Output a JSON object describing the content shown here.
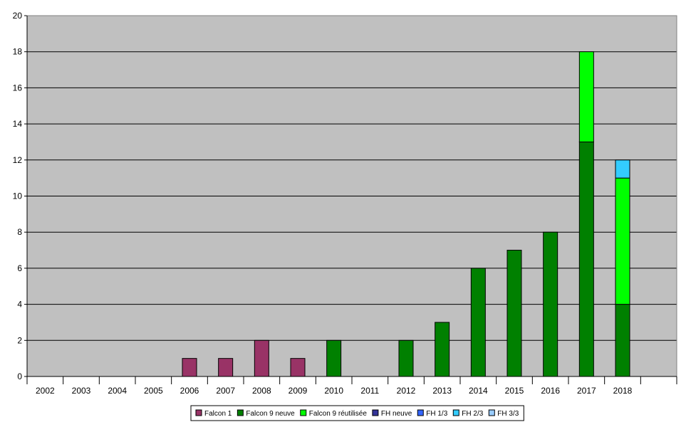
{
  "chart_data": {
    "type": "bar",
    "stacked": true,
    "title": "",
    "xlabel": "",
    "ylabel": "",
    "ylim": [
      0,
      20
    ],
    "yticks": [
      0,
      2,
      4,
      6,
      8,
      10,
      12,
      14,
      16,
      18,
      20
    ],
    "grid": true,
    "legend_position": "bottom",
    "categories": [
      "2002",
      "2003",
      "2004",
      "2005",
      "2006",
      "2007",
      "2008",
      "2009",
      "2010",
      "2011",
      "2012",
      "2013",
      "2014",
      "2015",
      "2016",
      "2017",
      "2018"
    ],
    "series": [
      {
        "name": "Falcon 1",
        "color": "#993366",
        "values": [
          0,
          0,
          0,
          0,
          1,
          1,
          2,
          1,
          0,
          0,
          0,
          0,
          0,
          0,
          0,
          0,
          0
        ]
      },
      {
        "name": "Falcon 9 neuve",
        "color": "#008000",
        "values": [
          0,
          0,
          0,
          0,
          0,
          0,
          0,
          0,
          2,
          0,
          2,
          3,
          6,
          7,
          8,
          13,
          4
        ]
      },
      {
        "name": "Falcon 9 réutilisée",
        "color": "#00ff00",
        "values": [
          0,
          0,
          0,
          0,
          0,
          0,
          0,
          0,
          0,
          0,
          0,
          0,
          0,
          0,
          0,
          5,
          7
        ]
      },
      {
        "name": "FH neuve",
        "color": "#333399",
        "values": [
          0,
          0,
          0,
          0,
          0,
          0,
          0,
          0,
          0,
          0,
          0,
          0,
          0,
          0,
          0,
          0,
          0
        ]
      },
      {
        "name": "FH 1/3",
        "color": "#3366ff",
        "values": [
          0,
          0,
          0,
          0,
          0,
          0,
          0,
          0,
          0,
          0,
          0,
          0,
          0,
          0,
          0,
          0,
          0
        ]
      },
      {
        "name": "FH 2/3",
        "color": "#33ccff",
        "values": [
          0,
          0,
          0,
          0,
          0,
          0,
          0,
          0,
          0,
          0,
          0,
          0,
          0,
          0,
          0,
          0,
          1
        ]
      },
      {
        "name": "FH 3/3",
        "color": "#99ccff",
        "values": [
          0,
          0,
          0,
          0,
          0,
          0,
          0,
          0,
          0,
          0,
          0,
          0,
          0,
          0,
          0,
          0,
          0
        ]
      }
    ],
    "colors": {
      "plot_background": "#c0c0c0",
      "gridline": "#000000",
      "bar_outline": "#000000"
    }
  }
}
